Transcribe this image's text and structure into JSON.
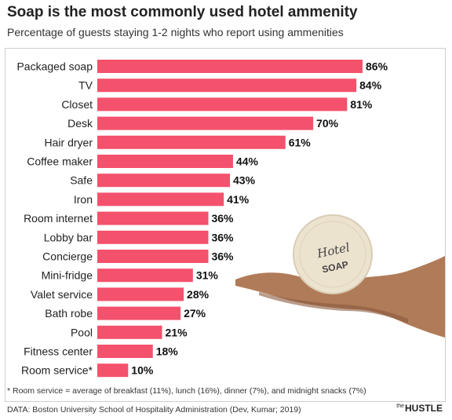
{
  "header": {
    "title": "Soap is the most commonly used hotel ammenity",
    "subtitle": "Percentage of guests staying 1-2 nights who report using ammenities"
  },
  "chart_data": {
    "type": "bar",
    "orientation": "horizontal",
    "categories": [
      "Packaged soap",
      "TV",
      "Closet",
      "Desk",
      "Hair dryer",
      "Coffee maker",
      "Safe",
      "Iron",
      "Room internet",
      "Lobby bar",
      "Concierge",
      "Mini-fridge",
      "Valet service",
      "Bath robe",
      "Pool",
      "Fitness center",
      "Room service*"
    ],
    "values": [
      86,
      84,
      81,
      70,
      61,
      44,
      43,
      41,
      36,
      36,
      36,
      31,
      28,
      27,
      21,
      18,
      10
    ],
    "value_labels": [
      "86%",
      "84%",
      "81%",
      "70%",
      "61%",
      "44%",
      "43%",
      "41%",
      "36%",
      "36%",
      "36%",
      "31%",
      "28%",
      "27%",
      "21%",
      "18%",
      "10%"
    ],
    "xlim": [
      0,
      100
    ],
    "bar_color": "#f4516c",
    "grid": false,
    "legend": "none"
  },
  "illustration": {
    "icon": "hand-holding-soap-icon",
    "soap_text_line1": "Hotel",
    "soap_text_line2": "SOAP"
  },
  "footer": {
    "footnote": "* Room service = average of breakfast (11%), lunch (16%), dinner (7%), and midnight snacks (7%)",
    "source": "DATA: Boston University School of Hospitality Administration (Dev, Kumar; 2019)",
    "brand_prefix": "the",
    "brand": "HUSTLE"
  }
}
